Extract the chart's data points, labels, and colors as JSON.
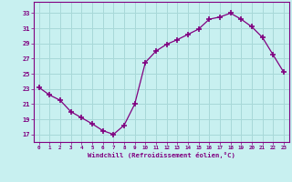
{
  "x": [
    0,
    1,
    2,
    3,
    4,
    5,
    6,
    7,
    8,
    9,
    10,
    11,
    12,
    13,
    14,
    15,
    16,
    17,
    18,
    19,
    20,
    21,
    22,
    23
  ],
  "y": [
    23.2,
    22.2,
    21.5,
    20.0,
    19.2,
    18.4,
    17.5,
    17.0,
    18.2,
    21.0,
    26.5,
    28.0,
    28.9,
    29.5,
    30.2,
    30.9,
    32.2,
    32.5,
    33.0,
    32.2,
    31.2,
    29.8,
    27.5,
    25.2
  ],
  "line_color": "#800080",
  "marker": "+",
  "marker_size": 4,
  "bg_color": "#c8f0f0",
  "grid_color": "#a8d8d8",
  "xlabel": "Windchill (Refroidissement éolien,°C)",
  "ylabel_ticks": [
    17,
    19,
    21,
    23,
    25,
    27,
    29,
    31,
    33
  ],
  "xlim": [
    -0.5,
    23.5
  ],
  "ylim": [
    16.0,
    34.5
  ],
  "tick_label_color": "#800080",
  "axis_color": "#800080",
  "xlabel_color": "#800080"
}
